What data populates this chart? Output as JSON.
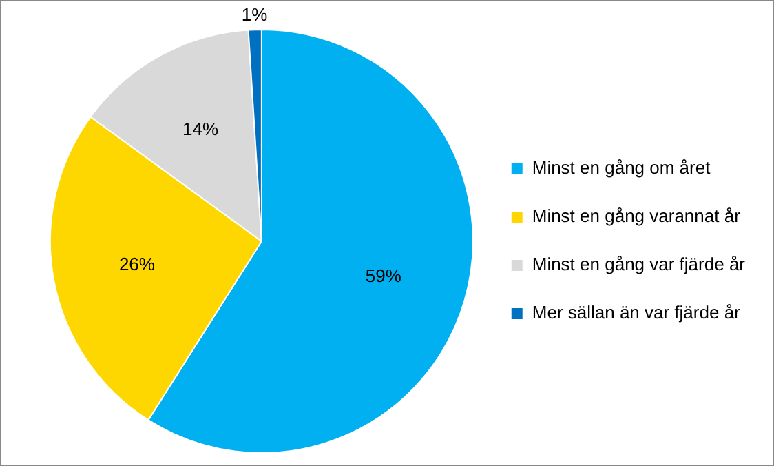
{
  "chart_data": {
    "type": "pie",
    "categories": [
      "Minst en gång om året",
      "Minst en gång varannat år",
      "Minst en gång var fjärde år",
      "Mer sällan än var fjärde år"
    ],
    "values": [
      59,
      26,
      14,
      1
    ],
    "colors": [
      "#00b0f0",
      "#ffd700",
      "#d9d9d9",
      "#0070c0"
    ],
    "value_labels": [
      "59%",
      "26%",
      "14%",
      "1%"
    ],
    "legend": "right"
  }
}
